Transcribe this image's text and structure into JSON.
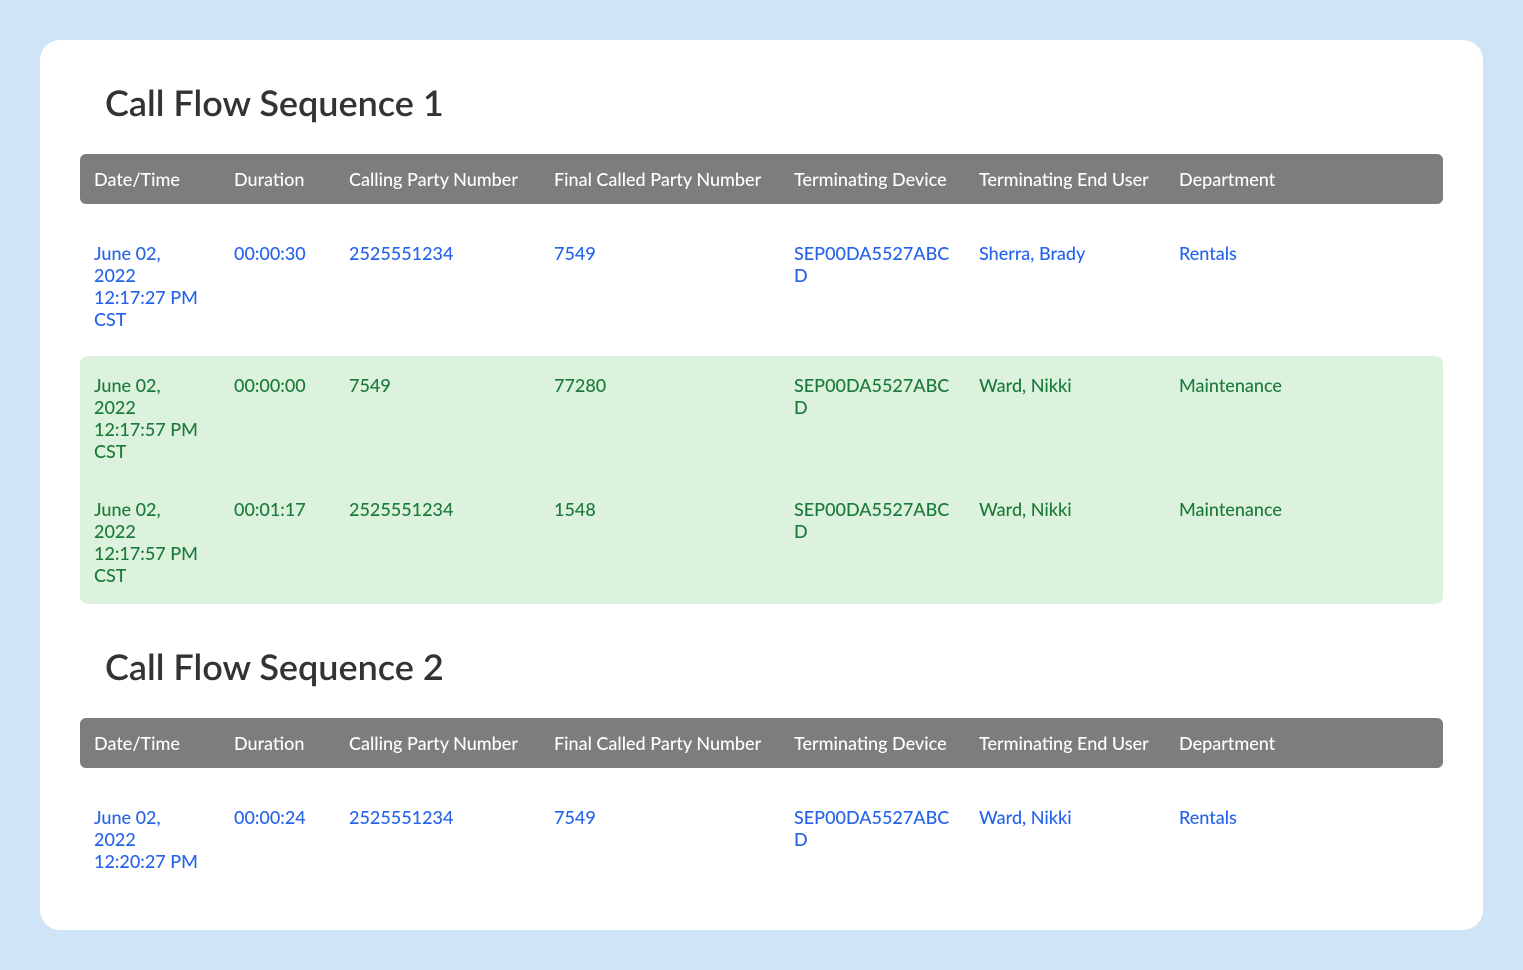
{
  "page": {
    "background_color": "#cfe4f7",
    "card_background": "#ffffff",
    "header_background": "#7d7d7d",
    "header_text_color": "#ffffff",
    "row_blue_color": "#2563eb",
    "row_green_color": "#1a7a3a",
    "green_group_bg": "#dcf2dc"
  },
  "sections": [
    {
      "title": "Call Flow Sequence 1",
      "columns": [
        "Date/Time",
        "Duration",
        "Calling Party Number",
        "Final Called Party Number",
        "Terminating Device",
        "Terminating End User",
        "Department"
      ],
      "rows": [
        {
          "style": "blue",
          "datetime": "June 02, 2022 12:17:27 PM CST",
          "duration": "00:00:30",
          "calling": "2525551234",
          "finalcalled": "7549",
          "device": "SEP00DA5527ABCD",
          "enduser": "Sherra, Brady",
          "department": "Rentals"
        },
        {
          "style": "green",
          "datetime": "June 02, 2022 12:17:57 PM CST",
          "duration": "00:00:00",
          "calling": "7549",
          "finalcalled": "77280",
          "device": "SEP00DA5527ABCD",
          "enduser": "Ward, Nikki",
          "department": "Maintenance"
        },
        {
          "style": "green",
          "datetime": "June 02, 2022 12:17:57 PM CST",
          "duration": "00:01:17",
          "calling": "2525551234",
          "finalcalled": "1548",
          "device": "SEP00DA5527ABCD",
          "enduser": "Ward, Nikki",
          "department": "Maintenance"
        }
      ]
    },
    {
      "title": "Call Flow Sequence 2",
      "columns": [
        "Date/Time",
        "Duration",
        "Calling Party Number",
        "Final Called Party Number",
        "Terminating Device",
        "Terminating End User",
        "Department"
      ],
      "rows": [
        {
          "style": "blue",
          "datetime": "June 02, 2022 12:20:27 PM",
          "duration": "00:00:24",
          "calling": "2525551234",
          "finalcalled": "7549",
          "device": "SEP00DA5527ABCD",
          "enduser": "Ward, Nikki",
          "department": "Rentals"
        }
      ]
    }
  ]
}
